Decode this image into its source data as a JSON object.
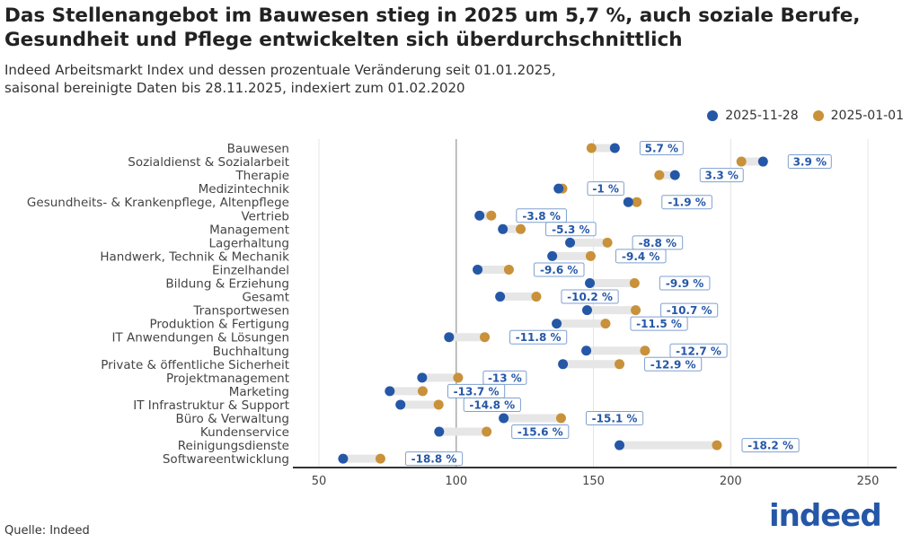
{
  "title": "Das Stellenangebot im Bauwesen stieg in 2025 um 5,7 %, auch soziale Berufe, Gesundheit und Pflege entwickelten sich überdurchschnittlich",
  "subtitle_line1": "Indeed Arbeitsmarkt Index und dessen prozentuale Veränderung seit 01.01.2025,",
  "subtitle_line2": "saisonal bereinigte Daten bis 28.11.2025, indexiert zum 01.02.2020",
  "source": "Quelle: Indeed",
  "logo": "indeed",
  "colors": {
    "current": "#2557a7",
    "start": "#c8913a",
    "bar": "#e6e6e6"
  },
  "chart_data": {
    "type": "dumbbell",
    "xlim": [
      40,
      260
    ],
    "xticks": [
      50,
      100,
      150,
      200,
      250
    ],
    "grid": true,
    "legend_position": "top-right",
    "series": [
      {
        "name": "2025-11-28",
        "key": "current"
      },
      {
        "name": "2025-01-01",
        "key": "start"
      }
    ],
    "rows": [
      {
        "label": "Bauwesen",
        "current": 157.8,
        "start": 149.3,
        "change": "5.7 %"
      },
      {
        "label": "Sozialdienst & Sozialarbeit",
        "current": 211.8,
        "start": 203.9,
        "change": "3.9 %"
      },
      {
        "label": "Therapie",
        "current": 179.7,
        "start": 174.0,
        "change": "3.3 %"
      },
      {
        "label": "Medizintechnik",
        "current": 137.3,
        "start": 138.7,
        "change": "-1 %"
      },
      {
        "label": "Gesundheits- & Krankenpflege, Altenpflege",
        "current": 162.7,
        "start": 165.8,
        "change": "-1.9 %"
      },
      {
        "label": "Vertrieb",
        "current": 108.5,
        "start": 112.8,
        "change": "-3.8 %"
      },
      {
        "label": "Management",
        "current": 117.0,
        "start": 123.5,
        "change": "-5.3 %"
      },
      {
        "label": "Lagerhaltung",
        "current": 141.5,
        "start": 155.1,
        "change": "-8.8 %"
      },
      {
        "label": "Handwerk, Technik & Mechanik",
        "current": 135.0,
        "start": 149.0,
        "change": "-9.4 %"
      },
      {
        "label": "Einzelhandel",
        "current": 107.8,
        "start": 119.2,
        "change": "-9.6 %"
      },
      {
        "label": "Bildung & Erziehung",
        "current": 148.7,
        "start": 165.0,
        "change": "-9.9 %"
      },
      {
        "label": "Gesamt",
        "current": 116.0,
        "start": 129.2,
        "change": "-10.2 %"
      },
      {
        "label": "Transportwesen",
        "current": 147.7,
        "start": 165.4,
        "change": "-10.7 %"
      },
      {
        "label": "Produktion & Fertigung",
        "current": 136.6,
        "start": 154.4,
        "change": "-11.5 %"
      },
      {
        "label": "IT Anwendungen & Lösungen",
        "current": 97.4,
        "start": 110.4,
        "change": "-11.8 %"
      },
      {
        "label": "Buchhaltung",
        "current": 147.4,
        "start": 168.8,
        "change": "-12.7 %"
      },
      {
        "label": "Private & öffentliche Sicherheit",
        "current": 138.9,
        "start": 159.5,
        "change": "-12.9 %"
      },
      {
        "label": "Projektmanagement",
        "current": 87.6,
        "start": 100.7,
        "change": "-13 %"
      },
      {
        "label": "Marketing",
        "current": 75.8,
        "start": 87.8,
        "change": "-13.7 %"
      },
      {
        "label": "IT Infrastruktur & Support",
        "current": 79.7,
        "start": 93.6,
        "change": "-14.8 %"
      },
      {
        "label": "Büro & Verwaltung",
        "current": 117.3,
        "start": 138.2,
        "change": "-15.1 %"
      },
      {
        "label": "Kundenservice",
        "current": 93.8,
        "start": 111.1,
        "change": "-15.6 %"
      },
      {
        "label": "Reinigungsdienste",
        "current": 159.5,
        "start": 195.0,
        "change": "-18.2 %"
      },
      {
        "label": "Softwareentwicklung",
        "current": 58.8,
        "start": 72.4,
        "change": "-18.8 %"
      }
    ]
  }
}
